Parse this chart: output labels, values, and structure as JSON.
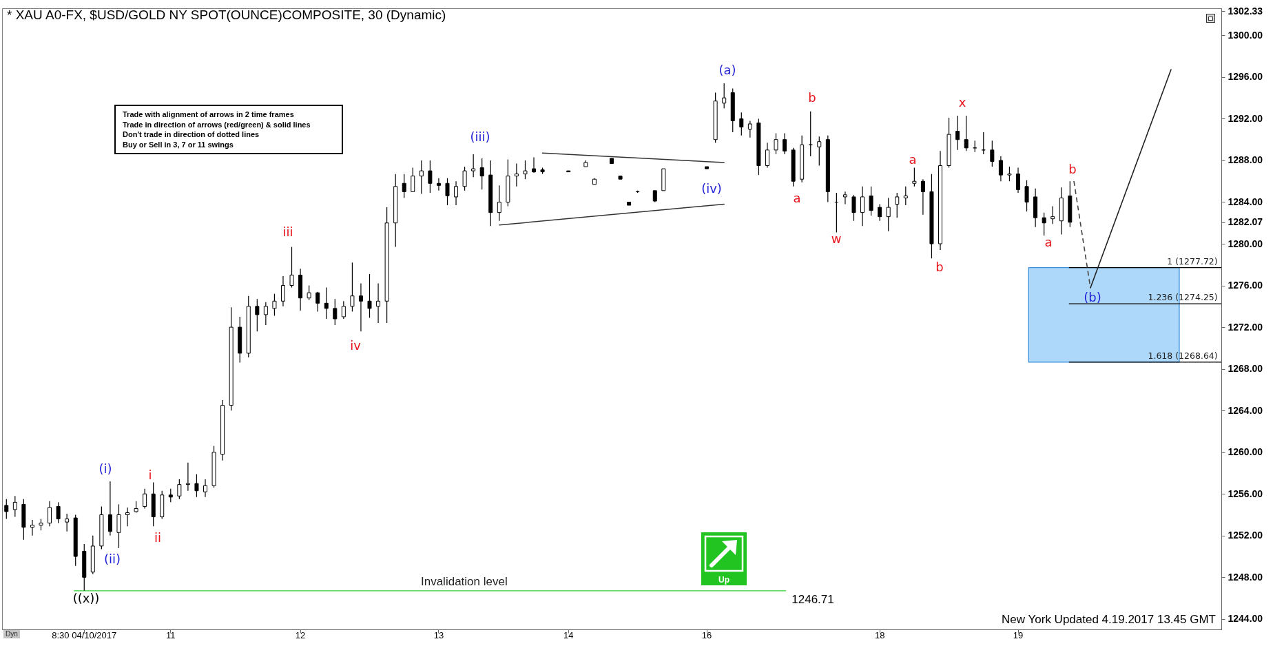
{
  "chart_data": {
    "type": "candlestick",
    "title": "* XAU A0-FX, $USD/GOLD NY SPOT(OUNCE)COMPOSITE, 30 (Dynamic)",
    "categories": [
      null,
      null,
      null,
      null,
      null,
      null,
      null,
      null,
      null,
      "8:30 04/10/2017",
      null,
      null,
      null,
      null,
      null,
      null,
      null,
      null,
      null,
      "11",
      null,
      null,
      null,
      null,
      null,
      null,
      null,
      null,
      null,
      null,
      null,
      null,
      null,
      null,
      "12",
      null,
      null,
      null,
      null,
      null,
      null,
      null,
      null,
      null,
      null,
      null,
      null,
      null,
      null,
      null,
      "13",
      null,
      null,
      null,
      null,
      null,
      null,
      null,
      null,
      null,
      null,
      null,
      null,
      null,
      null,
      "14",
      null,
      null,
      null,
      null,
      null,
      null,
      null,
      null,
      null,
      null,
      null,
      null,
      null,
      null,
      null,
      "16",
      null,
      null,
      null,
      null,
      null,
      null,
      null,
      null,
      null,
      null,
      null,
      null,
      null,
      null,
      null,
      null,
      null,
      null,
      null,
      "18",
      null,
      null,
      null,
      null,
      null,
      null,
      null,
      null,
      null,
      null,
      null,
      null,
      null,
      null,
      null,
      "19",
      null,
      null,
      null,
      null,
      null,
      null,
      null,
      null,
      null,
      null,
      null,
      null,
      null,
      null,
      null,
      null,
      null,
      null,
      null,
      null,
      null,
      null,
      null
    ],
    "ohlc": [
      [
        1254.9,
        1255.5,
        1253.6,
        1254.3
      ],
      [
        1254.5,
        1255.8,
        1253.8,
        1255.2
      ],
      [
        1255.0,
        1255.5,
        1251.6,
        1252.8
      ],
      [
        1252.8,
        1253.5,
        1252.0,
        1253.0
      ],
      [
        1253.0,
        1253.6,
        1252.5,
        1253.2
      ],
      [
        1253.2,
        1255.3,
        1252.9,
        1254.7
      ],
      [
        1254.8,
        1255.2,
        1253.2,
        1253.6
      ],
      [
        1253.3,
        1254.1,
        1252.4,
        1253.6
      ],
      [
        1253.7,
        1254.0,
        1249.1,
        1250.0
      ],
      [
        1250.5,
        1251.2,
        1246.71,
        1248.0
      ],
      [
        1248.5,
        1252.0,
        1248.3,
        1251.0
      ],
      [
        1251.0,
        1254.8,
        1250.7,
        1254.0
      ],
      [
        1254.0,
        1257.2,
        1252.0,
        1252.4
      ],
      [
        1252.3,
        1255.0,
        1250.8,
        1254.0
      ],
      [
        1254.0,
        1254.7,
        1252.9,
        1254.2
      ],
      [
        1254.3,
        1255.3,
        1254.2,
        1254.6
      ],
      [
        1254.8,
        1256.5,
        1254.6,
        1256.0
      ],
      [
        1256.0,
        1257.1,
        1252.9,
        1253.8
      ],
      [
        1253.8,
        1256.3,
        1253.6,
        1255.9
      ],
      [
        1255.9,
        1256.5,
        1255.2,
        1255.7
      ],
      [
        1255.8,
        1257.4,
        1255.5,
        1256.9
      ],
      [
        1256.9,
        1259.0,
        1256.3,
        1257.0
      ],
      [
        1257.0,
        1257.9,
        1255.7,
        1256.3
      ],
      [
        1256.2,
        1257.4,
        1255.7,
        1256.8
      ],
      [
        1256.8,
        1260.6,
        1256.6,
        1260.0
      ],
      [
        1259.8,
        1265.0,
        1259.2,
        1264.5
      ],
      [
        1264.5,
        1273.9,
        1264.0,
        1272.0
      ],
      [
        1272.0,
        1273.0,
        1268.6,
        1269.5
      ],
      [
        1269.5,
        1275.0,
        1269.1,
        1274.0
      ],
      [
        1274.0,
        1274.7,
        1271.6,
        1273.2
      ],
      [
        1273.2,
        1274.4,
        1272.2,
        1274.0
      ],
      [
        1273.8,
        1275.2,
        1273.1,
        1274.5
      ],
      [
        1274.5,
        1276.9,
        1274.0,
        1276.0
      ],
      [
        1276.0,
        1279.7,
        1275.8,
        1277.0
      ],
      [
        1277.0,
        1277.6,
        1273.6,
        1274.8
      ],
      [
        1274.8,
        1276.0,
        1274.6,
        1275.3
      ],
      [
        1275.3,
        1275.4,
        1273.5,
        1274.3
      ],
      [
        1274.3,
        1275.8,
        1272.8,
        1273.8
      ],
      [
        1273.8,
        1274.7,
        1272.2,
        1272.8
      ],
      [
        1273.0,
        1274.5,
        1272.8,
        1274.0
      ],
      [
        1274.0,
        1278.2,
        1273.5,
        1275.0
      ],
      [
        1275.0,
        1276.2,
        1271.6,
        1274.5
      ],
      [
        1274.5,
        1277.1,
        1272.9,
        1273.8
      ],
      [
        1274.0,
        1276.2,
        1272.4,
        1274.5
      ],
      [
        1274.5,
        1283.5,
        1272.4,
        1282.0
      ],
      [
        1282.0,
        1286.7,
        1279.7,
        1285.5
      ],
      [
        1285.8,
        1286.7,
        1284.4,
        1285.0
      ],
      [
        1285.0,
        1287.3,
        1285.0,
        1286.5
      ],
      [
        1286.5,
        1288.0,
        1284.8,
        1287.0
      ],
      [
        1287.0,
        1288.0,
        1284.9,
        1285.8
      ],
      [
        1285.8,
        1286.3,
        1285.1,
        1285.6
      ],
      [
        1285.8,
        1286.3,
        1283.7,
        1284.6
      ],
      [
        1284.5,
        1286.0,
        1283.7,
        1285.5
      ],
      [
        1285.5,
        1287.4,
        1285.1,
        1287.0
      ],
      [
        1287.0,
        1288.6,
        1286.4,
        1287.2
      ],
      [
        1287.3,
        1288.2,
        1285.2,
        1286.5
      ],
      [
        1286.6,
        1288.0,
        1281.7,
        1283.0
      ],
      [
        1283.0,
        1285.6,
        1282.2,
        1284.0
      ],
      [
        1284.0,
        1288.1,
        1283.6,
        1286.5
      ],
      [
        1286.5,
        1287.7,
        1285.5,
        1286.7
      ],
      [
        1286.7,
        1288.0,
        1286.2,
        1287.0
      ],
      [
        1287.2,
        1288.3,
        1286.8,
        1286.9
      ],
      [
        1287.1,
        1287.3,
        1286.7,
        1286.9
      ],
      null,
      null,
      [
        1287.0,
        1287.0,
        1286.9,
        1286.9
      ],
      null,
      [
        1287.4,
        1288.0,
        1287.4,
        1287.8
      ],
      [
        1285.7,
        1286.3,
        1285.7,
        1286.2
      ],
      null,
      [
        1288.2,
        1288.2,
        1287.7,
        1287.7
      ],
      [
        1286.5,
        1286.5,
        1286.2,
        1286.2
      ],
      [
        1284.0,
        1284.0,
        1283.7,
        1283.7
      ],
      [
        1285.0,
        1285.1,
        1284.9,
        1285.0
      ],
      null,
      [
        1285.1,
        1285.1,
        1284.0,
        1284.1
      ],
      [
        1285.1,
        1287.2,
        1285.1,
        1287.2
      ],
      null,
      null,
      null,
      null,
      [
        1287.4,
        1287.4,
        1287.2,
        1287.2
      ],
      [
        1290.0,
        1294.5,
        1289.7,
        1293.7
      ],
      [
        1293.5,
        1295.4,
        1293.0,
        1294.0
      ],
      [
        1294.5,
        1294.9,
        1290.7,
        1291.8
      ],
      [
        1292.0,
        1292.6,
        1290.4,
        1291.2
      ],
      [
        1291.0,
        1291.8,
        1290.2,
        1291.5
      ],
      [
        1291.6,
        1292.0,
        1286.6,
        1287.5
      ],
      [
        1287.5,
        1289.7,
        1287.3,
        1289.0
      ],
      [
        1289.0,
        1290.6,
        1288.6,
        1290.0
      ],
      [
        1290.0,
        1290.6,
        1288.6,
        1288.9
      ],
      [
        1289.0,
        1289.2,
        1285.5,
        1286.0
      ],
      [
        1286.2,
        1290.4,
        1285.9,
        1289.5
      ],
      [
        1289.5,
        1292.7,
        1288.4,
        1289.5
      ],
      [
        1289.3,
        1290.3,
        1287.5,
        1289.8
      ],
      [
        1290.0,
        1290.4,
        1284.0,
        1285.0
      ],
      [
        1284.0,
        1284.9,
        1281.1,
        1284.0
      ],
      [
        1284.5,
        1285.0,
        1283.8,
        1284.7
      ],
      [
        1284.5,
        1284.7,
        1282.2,
        1283.0
      ],
      [
        1283.0,
        1285.5,
        1281.7,
        1284.5
      ],
      [
        1284.6,
        1285.5,
        1282.7,
        1283.2
      ],
      [
        1283.5,
        1283.8,
        1282.2,
        1282.6
      ],
      [
        1282.6,
        1284.4,
        1281.2,
        1283.5
      ],
      [
        1283.8,
        1284.9,
        1282.5,
        1284.5
      ],
      [
        1284.4,
        1285.5,
        1283.7,
        1284.6
      ],
      [
        1285.8,
        1287.3,
        1285.5,
        1286.0
      ],
      [
        1286.0,
        1286.2,
        1282.8,
        1285.0
      ],
      [
        1285.0,
        1286.7,
        1278.6,
        1280.0
      ],
      [
        1280.0,
        1288.9,
        1279.4,
        1287.5
      ],
      [
        1287.5,
        1292.1,
        1287.3,
        1290.5
      ],
      [
        1290.8,
        1292.3,
        1289.0,
        1290.0
      ],
      [
        1290.0,
        1292.3,
        1288.9,
        1289.2
      ],
      [
        1289.2,
        1289.9,
        1288.8,
        1289.2
      ],
      [
        1289.0,
        1290.7,
        1288.6,
        1289.0
      ],
      [
        1289.0,
        1289.9,
        1287.4,
        1287.9
      ],
      [
        1288.0,
        1288.4,
        1286.0,
        1286.6
      ],
      [
        1286.6,
        1287.4,
        1286.0,
        1286.7
      ],
      [
        1286.7,
        1287.3,
        1284.9,
        1285.2
      ],
      [
        1285.5,
        1286.1,
        1283.1,
        1284.0
      ],
      [
        1284.5,
        1285.3,
        1281.6,
        1282.5
      ],
      [
        1282.5,
        1283.0,
        1280.8,
        1282.0
      ],
      [
        1282.4,
        1283.6,
        1281.9,
        1282.6
      ],
      [
        1282.2,
        1285.4,
        1280.9,
        1284.4
      ],
      [
        1284.6,
        1286.0,
        1281.6,
        1282.07
      ],
      null,
      null,
      null,
      null,
      null,
      null,
      null,
      null,
      null,
      null,
      null,
      null,
      null,
      null,
      null,
      null,
      null
    ],
    "color": "#000000",
    "series": [
      {
        "type": "line",
        "color": "#333333",
        "values": [
          null,
          null,
          null,
          null,
          null,
          null,
          null,
          null,
          null,
          null,
          null,
          null,
          null,
          null,
          null,
          null,
          null,
          null,
          null,
          null,
          null,
          null,
          null,
          null,
          null,
          null,
          null,
          null,
          null,
          null,
          null,
          null,
          null,
          null,
          null,
          null,
          null,
          null,
          null,
          null,
          null,
          null,
          null,
          null,
          null,
          null,
          null,
          null,
          null,
          null,
          null,
          null,
          null,
          null,
          null,
          null,
          null,
          null,
          null,
          null,
          null,
          null,
          1288.7,
          null,
          null,
          null,
          null,
          null,
          null,
          null,
          null,
          null,
          null,
          null,
          null,
          null,
          null,
          null,
          null,
          null,
          null,
          null,
          null,
          1287.8,
          null,
          null,
          null,
          null,
          null,
          null,
          null,
          null,
          null,
          null,
          null,
          null,
          null,
          null,
          null,
          null,
          null,
          null,
          null,
          null,
          null,
          null,
          null,
          null,
          null,
          null,
          null,
          null,
          null,
          null,
          null,
          null,
          null,
          null,
          null,
          null,
          null,
          null,
          null,
          null,
          null,
          null,
          null,
          null,
          null,
          null,
          null,
          null,
          null,
          null,
          null,
          null,
          null,
          null,
          null,
          null,
          null
        ]
      },
      {
        "type": "line",
        "color": "#333333",
        "values": [
          null,
          null,
          null,
          null,
          null,
          null,
          null,
          null,
          null,
          null,
          null,
          null,
          null,
          null,
          null,
          null,
          null,
          null,
          null,
          null,
          null,
          null,
          null,
          null,
          null,
          null,
          null,
          null,
          null,
          null,
          null,
          null,
          null,
          null,
          null,
          null,
          null,
          null,
          null,
          null,
          null,
          null,
          null,
          null,
          null,
          null,
          null,
          null,
          null,
          null,
          null,
          null,
          null,
          null,
          null,
          null,
          null,
          1281.8,
          null,
          null,
          null,
          null,
          null,
          null,
          null,
          null,
          null,
          null,
          null,
          null,
          null,
          null,
          null,
          null,
          null,
          null,
          null,
          null,
          null,
          null,
          null,
          null,
          null,
          1283.8,
          null,
          null,
          null,
          null,
          null,
          null,
          null,
          null,
          null,
          null,
          null,
          null,
          null,
          null,
          null,
          null,
          null,
          null,
          null,
          null,
          null,
          null,
          null,
          null,
          null,
          null,
          null,
          null,
          null,
          null,
          null,
          null,
          null,
          null,
          null,
          null,
          null,
          null,
          null,
          null,
          null,
          null,
          null,
          null,
          null,
          null,
          null,
          null,
          null,
          null,
          null,
          null,
          null,
          null,
          null,
          null,
          null
        ]
      }
    ],
    "ylim": [
      1243,
      1302.6
    ],
    "yticks": [
      {
        "value": 1244,
        "label": "1244.00"
      },
      {
        "value": 1248,
        "label": "1248.00"
      },
      {
        "value": 1252,
        "label": "1252.00"
      },
      {
        "value": 1256,
        "label": "1256.00"
      },
      {
        "value": 1260,
        "label": "1260.00"
      },
      {
        "value": 1264,
        "label": "1264.00"
      },
      {
        "value": 1268,
        "label": "1268.00"
      },
      {
        "value": 1272,
        "label": "1272.00"
      },
      {
        "value": 1276,
        "label": "1276.00"
      },
      {
        "value": 1280,
        "label": "1280.00"
      },
      1282.07,
      {
        "value": 1284,
        "label": "1284.00"
      },
      {
        "value": 1288,
        "label": "1288.00"
      },
      {
        "value": 1292,
        "label": "1292.00"
      },
      {
        "value": 1296,
        "label": "1296.00"
      },
      {
        "value": 1300,
        "label": "1300.00"
      },
      1302.33
    ],
    "ref_lines": [
      {
        "axis": "y",
        "value": 1246.71,
        "label": "Invalidation level",
        "color": "#66dd66"
      },
      {
        "axis": "y",
        "value": 1277.72,
        "label": "1 (1277.72)",
        "color": "#000000"
      },
      {
        "axis": "y",
        "value": 1274.25,
        "label": "1.236 (1274.25)",
        "color": "#000000"
      },
      {
        "axis": "y",
        "value": 1268.64,
        "label": "1.618 (1268.64)",
        "color": "#000000"
      }
    ],
    "bands": [
      {
        "axis": "y",
        "from": 1268.64,
        "to": 1277.72,
        "color": "#aed8f9"
      }
    ],
    "annotations": [
      "((x))",
      "(i)",
      "(ii)",
      "i",
      "ii",
      "iii",
      "iv",
      "(iii)",
      "(iv)",
      "(a)",
      "a",
      "b",
      "w",
      "a",
      "b",
      "x",
      "a",
      "b",
      "(b)",
      "1246.71",
      "Trade with alignment of arrows in 2 time frames",
      "Trade in direction of arrows (red/green) & solid lines",
      "Don't trade in direction of dotted lines",
      "Buy or Sell in 3, 7 or 11 swings",
      "Up",
      "Dyn",
      "New York Updated 4.19.2017 13.45 GMT"
    ]
  }
}
